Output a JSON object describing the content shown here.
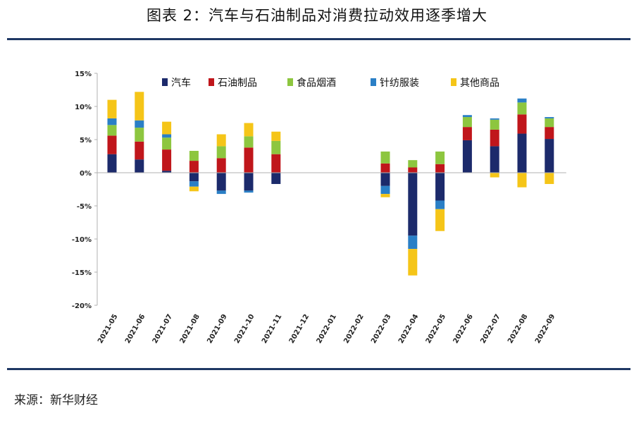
{
  "figure": {
    "title": "图表 2：汽车与石油制品对消费拉动效用逐季增大",
    "source": "来源：新华财经"
  },
  "colors": {
    "rule": "#1f3864",
    "axis": "#b0b0b0"
  },
  "chart_data": {
    "type": "bar",
    "stacked": true,
    "title": "",
    "xlabel": "",
    "ylabel": "",
    "ylim": [
      -20,
      15
    ],
    "yticks": [
      15,
      10,
      5,
      0,
      -5,
      -10,
      -15,
      -20
    ],
    "ytick_labels": [
      "15%",
      "10%",
      "5%",
      "0%",
      "-5%",
      "-10%",
      "-15%",
      "-20%"
    ],
    "grid": false,
    "legend_position": "top",
    "categories": [
      "2021-05",
      "2021-06",
      "2021-07",
      "2021-08",
      "2021-09",
      "2021-10",
      "2021-11",
      "2021-12",
      "2022-01",
      "2022-02",
      "2022-03",
      "2022-04",
      "2022-05",
      "2022-06",
      "2022-07",
      "2022-08",
      "2022-09"
    ],
    "series": [
      {
        "name": "汽车",
        "color": "#1c2a6b",
        "values": [
          2.8,
          2.0,
          0.3,
          -1.3,
          -2.7,
          -2.7,
          -1.7,
          null,
          null,
          null,
          -2.0,
          -9.5,
          -4.2,
          4.9,
          4.0,
          5.9,
          5.1
        ]
      },
      {
        "name": "石油制品",
        "color": "#c0161b",
        "values": [
          2.8,
          2.7,
          3.2,
          1.8,
          2.2,
          3.8,
          2.8,
          null,
          null,
          null,
          1.4,
          0.8,
          1.3,
          2.0,
          2.5,
          2.9,
          1.8
        ]
      },
      {
        "name": "食品烟酒",
        "color": "#8dc63f",
        "values": [
          1.6,
          2.1,
          1.8,
          1.5,
          1.8,
          1.7,
          2.0,
          null,
          null,
          null,
          1.8,
          1.1,
          1.9,
          1.5,
          1.5,
          1.8,
          1.3
        ]
      },
      {
        "name": "针纺服装",
        "color": "#2a7fc6",
        "values": [
          1.0,
          1.1,
          0.5,
          -0.8,
          -0.5,
          -0.3,
          null,
          null,
          null,
          null,
          -1.2,
          -2.0,
          -1.3,
          0.3,
          0.2,
          0.6,
          0.2
        ]
      },
      {
        "name": "其他商品",
        "color": "#f5c518",
        "values": [
          2.8,
          4.3,
          1.9,
          -0.7,
          1.8,
          2.0,
          1.4,
          null,
          null,
          null,
          -0.5,
          -4.0,
          -3.3,
          null,
          -0.7,
          -2.2,
          -1.7
        ]
      }
    ]
  }
}
